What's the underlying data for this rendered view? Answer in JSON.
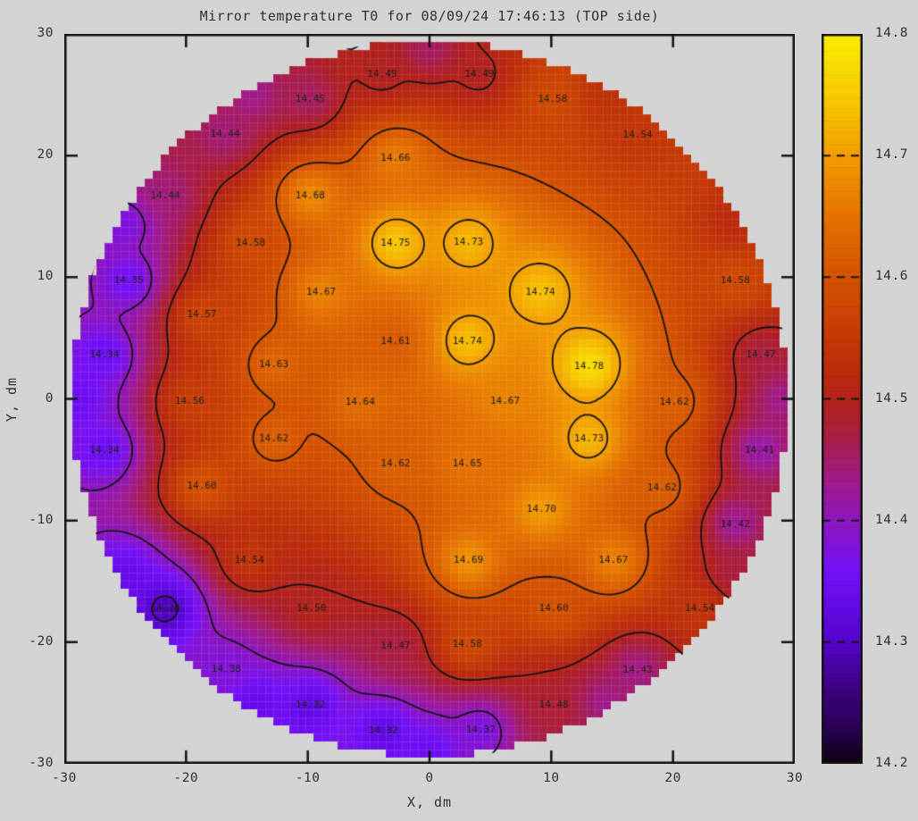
{
  "page": {
    "background": "#d3d3d3",
    "text_color": "#303030"
  },
  "chart_data": {
    "type": "heatmap",
    "subtype": "circular-sensor-contour-map",
    "title": "Mirror temperature T0 for 08/09/24 17:46:13 (TOP side)",
    "xlabel": "X, dm",
    "ylabel": "Y, dm",
    "xlim": [
      -30,
      30
    ],
    "ylim": [
      -30,
      30
    ],
    "x_tick_labels": [
      "-30",
      "-20",
      "-10",
      "0",
      "10",
      "20",
      "30"
    ],
    "y_tick_labels": [
      "30",
      "20",
      "10",
      "0",
      "-10",
      "-20",
      "-30"
    ],
    "grid": false,
    "disk_radius_dm": 29.4,
    "frame_color": "#141414",
    "contour_color": "#141414",
    "sensor_label_color": "#23201a",
    "contour_levels": [
      14.3,
      14.4,
      14.5,
      14.6,
      14.7
    ],
    "colorbar": {
      "min": 14.2,
      "max": 14.8,
      "tick_labels": [
        "14.8",
        "14.7",
        "14.6",
        "14.5",
        "14.4",
        "14.3",
        "14.2"
      ],
      "stops": [
        [
          14.2,
          "#0c0013"
        ],
        [
          14.23,
          "#2a0154"
        ],
        [
          14.26,
          "#3d027f"
        ],
        [
          14.3,
          "#5404c9"
        ],
        [
          14.33,
          "#650ae8"
        ],
        [
          14.36,
          "#7411f8"
        ],
        [
          14.43,
          "#a01a90"
        ],
        [
          14.46,
          "#a71d55"
        ],
        [
          14.49,
          "#af2023"
        ],
        [
          14.52,
          "#ba2a0d"
        ],
        [
          14.56,
          "#c83f04"
        ],
        [
          14.6,
          "#d45200"
        ],
        [
          14.65,
          "#e57200"
        ],
        [
          14.7,
          "#f29d00"
        ],
        [
          14.74,
          "#f6c300"
        ],
        [
          14.8,
          "#f9ef00"
        ]
      ]
    },
    "sensors_xyt": [
      [
        -3.9,
        26.7,
        14.49
      ],
      [
        4.1,
        26.7,
        14.49
      ],
      [
        -9.8,
        24.6,
        14.45
      ],
      [
        10.1,
        24.6,
        14.58
      ],
      [
        -16.8,
        21.8,
        14.44
      ],
      [
        17.1,
        21.7,
        14.54
      ],
      [
        -2.8,
        19.8,
        14.66
      ],
      [
        -21.7,
        16.7,
        14.44
      ],
      [
        -9.8,
        16.7,
        14.68
      ],
      [
        -14.7,
        12.8,
        14.58
      ],
      [
        -2.8,
        12.8,
        14.75
      ],
      [
        3.2,
        12.9,
        14.73
      ],
      [
        -24.7,
        9.7,
        14.35
      ],
      [
        25.1,
        9.7,
        14.58
      ],
      [
        -8.9,
        8.8,
        14.67
      ],
      [
        9.1,
        8.8,
        14.74
      ],
      [
        -18.7,
        6.9,
        14.57
      ],
      [
        -2.8,
        4.7,
        14.61
      ],
      [
        3.1,
        4.7,
        14.74
      ],
      [
        -26.7,
        3.6,
        14.34
      ],
      [
        -12.8,
        2.8,
        14.63
      ],
      [
        13.1,
        2.7,
        14.78
      ],
      [
        27.2,
        3.6,
        14.47
      ],
      [
        -19.7,
        -0.2,
        14.56
      ],
      [
        -5.7,
        -0.3,
        14.64
      ],
      [
        6.2,
        -0.2,
        14.67
      ],
      [
        20.1,
        -0.3,
        14.62
      ],
      [
        -26.7,
        -4.2,
        14.34
      ],
      [
        -12.8,
        -3.3,
        14.62
      ],
      [
        13.1,
        -3.3,
        14.73
      ],
      [
        27.1,
        -4.2,
        14.41
      ],
      [
        -2.8,
        -5.3,
        14.62
      ],
      [
        3.1,
        -5.3,
        14.65
      ],
      [
        -18.7,
        -7.2,
        14.6
      ],
      [
        19.1,
        -7.3,
        14.62
      ],
      [
        9.2,
        -9.1,
        14.7
      ],
      [
        25.1,
        -10.3,
        14.42
      ],
      [
        -14.8,
        -13.3,
        14.54
      ],
      [
        3.2,
        -13.3,
        14.69
      ],
      [
        15.1,
        -13.3,
        14.67
      ],
      [
        -21.7,
        -17.2,
        14.28
      ],
      [
        -9.7,
        -17.2,
        14.5
      ],
      [
        10.2,
        -17.2,
        14.6
      ],
      [
        22.2,
        -17.2,
        14.54
      ],
      [
        -2.8,
        -20.3,
        14.47
      ],
      [
        3.1,
        -20.2,
        14.58
      ],
      [
        -16.7,
        -22.2,
        14.38
      ],
      [
        17.1,
        -22.3,
        14.43
      ],
      [
        -9.8,
        -25.2,
        14.32
      ],
      [
        10.2,
        -25.2,
        14.48
      ],
      [
        -3.8,
        -27.3,
        14.32
      ],
      [
        4.2,
        -27.2,
        14.37
      ]
    ],
    "rim_samples_xyt": [
      [
        0,
        28.8,
        14.45
      ],
      [
        14.4,
        24.94,
        14.53
      ],
      [
        24.94,
        14.4,
        14.52
      ],
      [
        28.8,
        0,
        14.43
      ],
      [
        24.94,
        -14.4,
        14.47
      ],
      [
        14.4,
        -24.94,
        14.43
      ],
      [
        0,
        -28.8,
        14.34
      ],
      [
        -14.4,
        -24.94,
        14.33
      ],
      [
        -24.94,
        -14.4,
        14.33
      ],
      [
        -28.8,
        0,
        14.34
      ],
      [
        -24.94,
        14.4,
        14.37
      ],
      [
        -14.4,
        24.94,
        14.43
      ]
    ]
  }
}
